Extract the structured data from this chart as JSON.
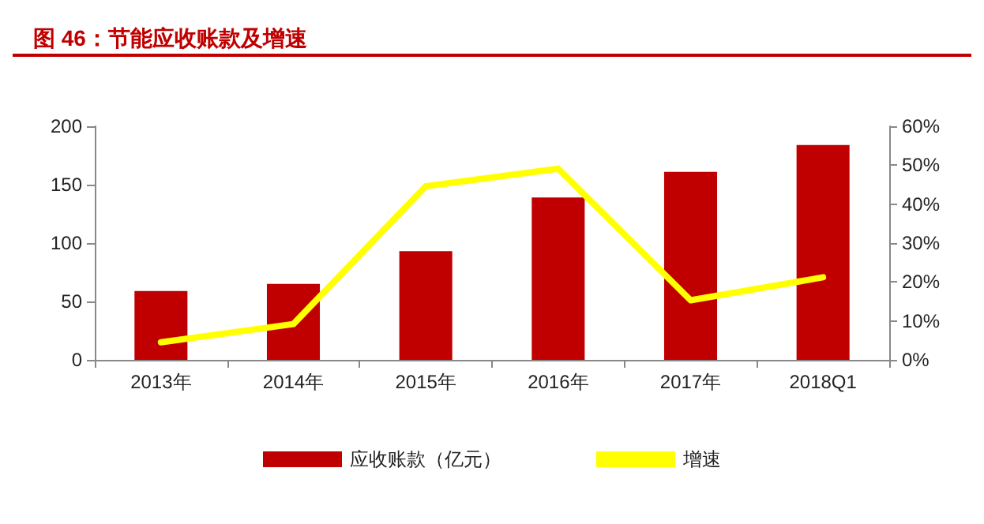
{
  "chart_data": {
    "type": "bar",
    "title": "图 46：节能应收账款及增速",
    "categories": [
      "2013年",
      "2014年",
      "2015年",
      "2016年",
      "2017年",
      "2018Q1"
    ],
    "series": [
      {
        "name": "应收账款（亿元）",
        "color": "#c00000",
        "values": [
          59,
          65,
          93,
          139,
          161,
          184
        ]
      },
      {
        "name": "增速",
        "type": "line",
        "axis": "y2",
        "color": "#ffff00",
        "values": [
          4.5,
          9.2,
          44.6,
          49.1,
          15.3,
          21.2
        ]
      }
    ],
    "ylim": [
      0,
      200
    ],
    "yticks": [
      0,
      50,
      100,
      150,
      200
    ],
    "y2lim": [
      0,
      60
    ],
    "y2ticks": [
      {
        "value": 0,
        "label": "0%"
      },
      {
        "value": 10,
        "label": "10%"
      },
      {
        "value": 20,
        "label": "20%"
      },
      {
        "value": 30,
        "label": "30%"
      },
      {
        "value": 40,
        "label": "40%"
      },
      {
        "value": 50,
        "label": "50%"
      },
      {
        "value": 60,
        "label": "60%"
      }
    ],
    "grid": false,
    "legend": "bottom",
    "marker": "none"
  }
}
